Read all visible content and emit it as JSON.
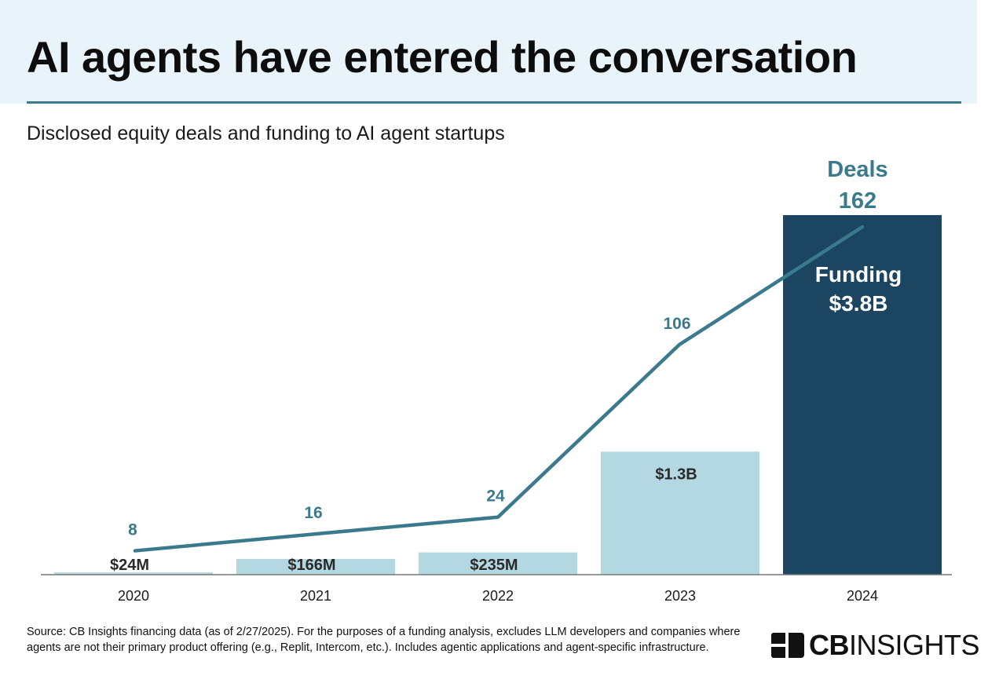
{
  "header": {
    "title": "AI agents have entered the conversation",
    "subtitle": "Disclosed equity deals and funding to AI agent startups"
  },
  "chart_data": {
    "type": "bar",
    "categories": [
      "2020",
      "2021",
      "2022",
      "2023",
      "2024"
    ],
    "series": [
      {
        "name": "Funding",
        "kind": "bar",
        "values": [
          24,
          166,
          235,
          1300,
          3800
        ],
        "labels": [
          "$24M",
          "$166M",
          "$235M",
          "$1.3B",
          "$3.8B"
        ]
      },
      {
        "name": "Deals",
        "kind": "line",
        "values": [
          8,
          16,
          24,
          106,
          162
        ]
      }
    ],
    "legend_labels": {
      "deals_label": "Deals",
      "funding_label": "Funding"
    },
    "colors": {
      "bar": "#b3d8e1",
      "bar_highlight": "#1c4561",
      "line": "#3a7a8c",
      "deal_label": "#3a7a8c",
      "bar_label": "#2a2a2a",
      "bar_label_highlight": "#ffffff"
    }
  },
  "footer": {
    "source": "Source: CB Insights financing data (as of 2/27/2025). For the purposes of a funding analysis, excludes LLM developers and companies where agents are not their primary product offering (e.g., Replit, Intercom, etc.). Includes agentic applications and agent-specific infrastructure.",
    "logo_bold": "CB",
    "logo_rest": "INSIGHTS"
  }
}
